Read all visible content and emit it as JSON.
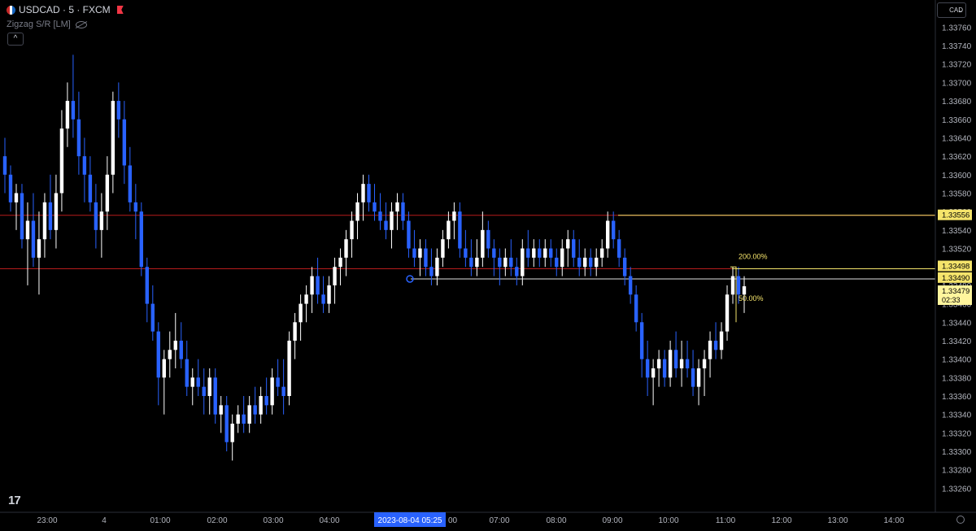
{
  "header": {
    "symbol": "USDCAD · 5 · FXCM",
    "indicator": "Zigzag S/R [LM]"
  },
  "toolbar": {
    "currency": "CAD",
    "collapse_icon": "chevron-up-icon",
    "settings_icon": "gear-icon",
    "logo": "TV"
  },
  "colors": {
    "bull": "#ffffff",
    "bear": "#2962ff",
    "grid": "#131722",
    "resistance": "#b71c1c",
    "fib": "#f5e46b",
    "bg": "#000000"
  },
  "chart_data": {
    "type": "candlestick",
    "ylim": [
      1.3325,
      1.3377
    ],
    "ticks_y": [
      "1.33760",
      "1.33740",
      "1.33720",
      "1.33700",
      "1.33680",
      "1.33660",
      "1.33640",
      "1.33620",
      "1.33600",
      "1.33580",
      "1.33560",
      "1.33540",
      "1.33520",
      "1.33500",
      "1.33480",
      "1.33460",
      "1.33440",
      "1.33420",
      "1.33400",
      "1.33380",
      "1.33360",
      "1.33340",
      "1.33320",
      "1.33300",
      "1.33280",
      "1.33260"
    ],
    "ticks_x": [
      "23:00",
      "4",
      "01:00",
      "02:00",
      "03:00",
      "04:00",
      "2023-08-04  05:25",
      "07:00",
      "08:00",
      "09:00",
      "10:00",
      "11:00",
      "12:00",
      "13:00",
      "14:00"
    ],
    "support_resistance": [
      1.33556,
      1.33498
    ],
    "fib_levels": [
      {
        "label": "200.00%",
        "value": 1.33498
      },
      {
        "label": "50.00%",
        "value": 1.33466
      }
    ],
    "price_labels": [
      {
        "value": "1.33556"
      },
      {
        "value": "1.33498"
      },
      {
        "value": "1.33490"
      },
      {
        "value": "1.33479",
        "countdown": "02:33"
      }
    ],
    "candles": [
      [
        1.3362,
        1.3364,
        1.3358,
        1.336
      ],
      [
        1.336,
        1.3361,
        1.3356,
        1.3357
      ],
      [
        1.3357,
        1.3359,
        1.3354,
        1.3358
      ],
      [
        1.3358,
        1.3359,
        1.3352,
        1.3353
      ],
      [
        1.3353,
        1.3357,
        1.3348,
        1.3355
      ],
      [
        1.3355,
        1.3358,
        1.335,
        1.3351
      ],
      [
        1.3351,
        1.3356,
        1.3347,
        1.3353
      ],
      [
        1.3353,
        1.3358,
        1.3351,
        1.3357
      ],
      [
        1.3357,
        1.336,
        1.3353,
        1.3354
      ],
      [
        1.3354,
        1.336,
        1.3352,
        1.3358
      ],
      [
        1.3358,
        1.3367,
        1.3356,
        1.3365
      ],
      [
        1.3365,
        1.337,
        1.3363,
        1.3368
      ],
      [
        1.3368,
        1.3373,
        1.3364,
        1.3366
      ],
      [
        1.3366,
        1.3369,
        1.336,
        1.3362
      ],
      [
        1.3362,
        1.3364,
        1.3357,
        1.336
      ],
      [
        1.336,
        1.3362,
        1.3356,
        1.3357
      ],
      [
        1.3357,
        1.3359,
        1.3352,
        1.3354
      ],
      [
        1.3354,
        1.3358,
        1.3351,
        1.3356
      ],
      [
        1.3356,
        1.3362,
        1.3354,
        1.336
      ],
      [
        1.336,
        1.3369,
        1.3358,
        1.3368
      ],
      [
        1.3368,
        1.337,
        1.3364,
        1.3366
      ],
      [
        1.3366,
        1.3368,
        1.3359,
        1.3361
      ],
      [
        1.3361,
        1.3363,
        1.3356,
        1.3357
      ],
      [
        1.3357,
        1.3359,
        1.3353,
        1.3356
      ],
      [
        1.3356,
        1.3357,
        1.3349,
        1.335
      ],
      [
        1.335,
        1.3351,
        1.3344,
        1.3346
      ],
      [
        1.3346,
        1.3348,
        1.3342,
        1.3343
      ],
      [
        1.3343,
        1.3344,
        1.3335,
        1.3338
      ],
      [
        1.3338,
        1.3341,
        1.3334,
        1.334
      ],
      [
        1.334,
        1.3343,
        1.3338,
        1.3341
      ],
      [
        1.3341,
        1.3345,
        1.3339,
        1.3342
      ],
      [
        1.3342,
        1.3344,
        1.3339,
        1.334
      ],
      [
        1.334,
        1.3342,
        1.3336,
        1.3337
      ],
      [
        1.3337,
        1.3339,
        1.3335,
        1.3338
      ],
      [
        1.3338,
        1.334,
        1.3336,
        1.3337
      ],
      [
        1.3337,
        1.3339,
        1.3334,
        1.3336
      ],
      [
        1.3336,
        1.3339,
        1.3334,
        1.3338
      ],
      [
        1.3338,
        1.3339,
        1.3333,
        1.3334
      ],
      [
        1.3334,
        1.3336,
        1.3332,
        1.3335
      ],
      [
        1.3335,
        1.3336,
        1.333,
        1.3331
      ],
      [
        1.3331,
        1.3334,
        1.3329,
        1.3333
      ],
      [
        1.3333,
        1.3335,
        1.3332,
        1.3334
      ],
      [
        1.3334,
        1.3336,
        1.3332,
        1.3333
      ],
      [
        1.3333,
        1.3336,
        1.3332,
        1.3335
      ],
      [
        1.3335,
        1.3337,
        1.3333,
        1.3334
      ],
      [
        1.3334,
        1.3337,
        1.3333,
        1.3336
      ],
      [
        1.3336,
        1.3338,
        1.3334,
        1.3335
      ],
      [
        1.3335,
        1.3339,
        1.3334,
        1.3338
      ],
      [
        1.3338,
        1.334,
        1.3336,
        1.3337
      ],
      [
        1.3337,
        1.334,
        1.3334,
        1.3336
      ],
      [
        1.3336,
        1.3343,
        1.3335,
        1.3342
      ],
      [
        1.3342,
        1.3345,
        1.334,
        1.3344
      ],
      [
        1.3344,
        1.3347,
        1.3342,
        1.3346
      ],
      [
        1.3346,
        1.3348,
        1.3344,
        1.3347
      ],
      [
        1.3347,
        1.335,
        1.3345,
        1.3349
      ],
      [
        1.3349,
        1.3351,
        1.3346,
        1.3347
      ],
      [
        1.3347,
        1.3349,
        1.3345,
        1.3346
      ],
      [
        1.3346,
        1.3349,
        1.3345,
        1.3348
      ],
      [
        1.3348,
        1.3351,
        1.3346,
        1.335
      ],
      [
        1.335,
        1.3352,
        1.3348,
        1.3351
      ],
      [
        1.3351,
        1.3354,
        1.3349,
        1.3353
      ],
      [
        1.3353,
        1.3356,
        1.3351,
        1.3355
      ],
      [
        1.3355,
        1.3358,
        1.3353,
        1.3357
      ],
      [
        1.3357,
        1.336,
        1.3355,
        1.3359
      ],
      [
        1.3359,
        1.336,
        1.3356,
        1.3357
      ],
      [
        1.3357,
        1.3359,
        1.3355,
        1.3356
      ],
      [
        1.3356,
        1.3358,
        1.3354,
        1.3355
      ],
      [
        1.3355,
        1.3357,
        1.3353,
        1.3354
      ],
      [
        1.3354,
        1.3357,
        1.3352,
        1.3356
      ],
      [
        1.3356,
        1.3358,
        1.3354,
        1.3357
      ],
      [
        1.3357,
        1.3358,
        1.3354,
        1.3355
      ],
      [
        1.3355,
        1.3356,
        1.3351,
        1.3352
      ],
      [
        1.3352,
        1.3354,
        1.335,
        1.3351
      ],
      [
        1.3351,
        1.3353,
        1.3349,
        1.3352
      ],
      [
        1.3352,
        1.3353,
        1.3349,
        1.335
      ],
      [
        1.335,
        1.3352,
        1.3348,
        1.3349
      ],
      [
        1.3349,
        1.3352,
        1.3348,
        1.3351
      ],
      [
        1.3351,
        1.3354,
        1.335,
        1.3353
      ],
      [
        1.3353,
        1.3356,
        1.3352,
        1.3355
      ],
      [
        1.3355,
        1.3357,
        1.3353,
        1.3356
      ],
      [
        1.3356,
        1.3357,
        1.3351,
        1.3352
      ],
      [
        1.3352,
        1.3354,
        1.335,
        1.3351
      ],
      [
        1.3351,
        1.3353,
        1.3349,
        1.335
      ],
      [
        1.335,
        1.3353,
        1.3349,
        1.3351
      ],
      [
        1.3351,
        1.3356,
        1.335,
        1.3354
      ],
      [
        1.3354,
        1.3355,
        1.3351,
        1.3352
      ],
      [
        1.3352,
        1.3353,
        1.3349,
        1.3351
      ],
      [
        1.3351,
        1.3352,
        1.3348,
        1.335
      ],
      [
        1.335,
        1.3352,
        1.3349,
        1.3351
      ],
      [
        1.3351,
        1.3353,
        1.3349,
        1.335
      ],
      [
        1.335,
        1.3351,
        1.3348,
        1.3349
      ],
      [
        1.3349,
        1.3353,
        1.3348,
        1.3352
      ],
      [
        1.3352,
        1.3354,
        1.335,
        1.3351
      ],
      [
        1.3351,
        1.3353,
        1.335,
        1.3352
      ],
      [
        1.3352,
        1.3353,
        1.335,
        1.3351
      ],
      [
        1.3351,
        1.3353,
        1.335,
        1.3352
      ],
      [
        1.3352,
        1.3353,
        1.335,
        1.3351
      ],
      [
        1.3351,
        1.3352,
        1.3349,
        1.335
      ],
      [
        1.335,
        1.3353,
        1.3349,
        1.3352
      ],
      [
        1.3352,
        1.3354,
        1.335,
        1.3353
      ],
      [
        1.3353,
        1.3354,
        1.335,
        1.3351
      ],
      [
        1.3351,
        1.3353,
        1.3349,
        1.335
      ],
      [
        1.335,
        1.3352,
        1.3349,
        1.3351
      ],
      [
        1.3351,
        1.3352,
        1.3349,
        1.335
      ],
      [
        1.335,
        1.3352,
        1.3349,
        1.3351
      ],
      [
        1.3351,
        1.3353,
        1.335,
        1.3352
      ],
      [
        1.3352,
        1.3356,
        1.3351,
        1.3355
      ],
      [
        1.3355,
        1.3356,
        1.3352,
        1.3353
      ],
      [
        1.3353,
        1.3354,
        1.335,
        1.3351
      ],
      [
        1.3351,
        1.3352,
        1.3348,
        1.3349
      ],
      [
        1.3349,
        1.335,
        1.3346,
        1.3347
      ],
      [
        1.3347,
        1.3348,
        1.3343,
        1.3344
      ],
      [
        1.3344,
        1.3345,
        1.3338,
        1.334
      ],
      [
        1.334,
        1.3342,
        1.3336,
        1.3338
      ],
      [
        1.3338,
        1.334,
        1.3335,
        1.3339
      ],
      [
        1.3339,
        1.3341,
        1.3337,
        1.334
      ],
      [
        1.334,
        1.3341,
        1.3337,
        1.3338
      ],
      [
        1.3338,
        1.3342,
        1.3337,
        1.3341
      ],
      [
        1.3341,
        1.3343,
        1.3338,
        1.3339
      ],
      [
        1.3339,
        1.3342,
        1.3337,
        1.334
      ],
      [
        1.334,
        1.3342,
        1.3338,
        1.3339
      ],
      [
        1.3339,
        1.3341,
        1.3336,
        1.3337
      ],
      [
        1.3337,
        1.334,
        1.3335,
        1.3339
      ],
      [
        1.3339,
        1.3341,
        1.3336,
        1.334
      ],
      [
        1.334,
        1.3343,
        1.3338,
        1.3342
      ],
      [
        1.3342,
        1.3344,
        1.334,
        1.3341
      ],
      [
        1.3341,
        1.3344,
        1.334,
        1.3343
      ],
      [
        1.3343,
        1.3348,
        1.3342,
        1.3347
      ],
      [
        1.3347,
        1.335,
        1.3346,
        1.3349
      ],
      [
        1.3349,
        1.335,
        1.3346,
        1.3347
      ],
      [
        1.3347,
        1.3349,
        1.3345,
        1.33479
      ]
    ]
  }
}
